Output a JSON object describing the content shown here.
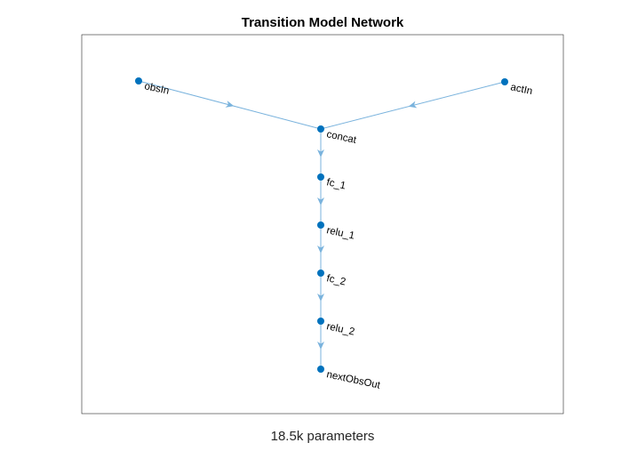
{
  "figure": {
    "title": "Transition Model Network",
    "xlabel": "18.5k parameters"
  },
  "graph": {
    "nodes": [
      {
        "id": "obsIn",
        "label": "obsIn"
      },
      {
        "id": "actIn",
        "label": "actIn"
      },
      {
        "id": "concat",
        "label": "concat"
      },
      {
        "id": "fc_1",
        "label": "fc_1"
      },
      {
        "id": "relu_1",
        "label": "relu_1"
      },
      {
        "id": "fc_2",
        "label": "fc_2"
      },
      {
        "id": "relu_2",
        "label": "relu_2"
      },
      {
        "id": "nextObsOut",
        "label": "nextObsOut"
      }
    ],
    "edges": [
      {
        "from": "obsIn",
        "to": "concat"
      },
      {
        "from": "actIn",
        "to": "concat"
      },
      {
        "from": "concat",
        "to": "fc_1"
      },
      {
        "from": "fc_1",
        "to": "relu_1"
      },
      {
        "from": "relu_1",
        "to": "fc_2"
      },
      {
        "from": "fc_2",
        "to": "relu_2"
      },
      {
        "from": "relu_2",
        "to": "nextObsOut"
      }
    ],
    "colors": {
      "node": "#0072bd",
      "edge": "#7ab3dd"
    }
  }
}
